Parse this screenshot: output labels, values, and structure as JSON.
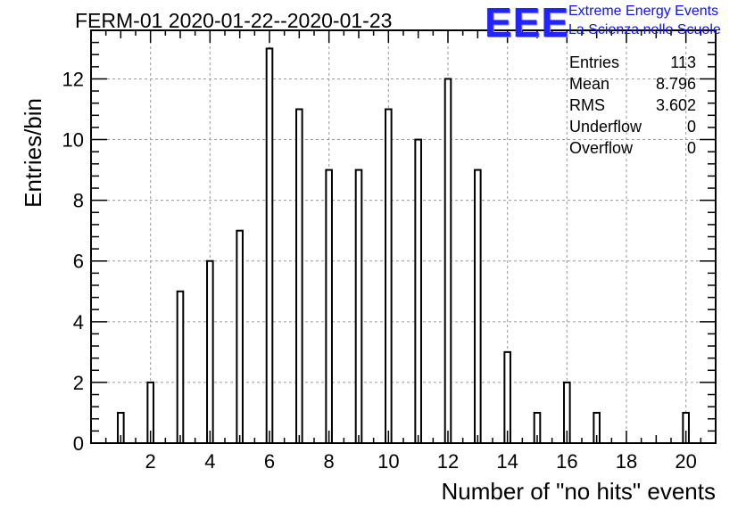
{
  "header": {
    "title": "FERM-01 2020-01-22--2020-01-23",
    "logo_mark": "EEE",
    "logo_line1": "Extreme Energy Events",
    "logo_line2": "La Scienza nelle Scuole"
  },
  "stats": [
    {
      "label": "Entries",
      "value": "113"
    },
    {
      "label": "Mean",
      "value": "8.796"
    },
    {
      "label": "RMS",
      "value": "3.602"
    },
    {
      "label": "Underflow",
      "value": "0"
    },
    {
      "label": "Overflow",
      "value": "0"
    }
  ],
  "chart_data": {
    "type": "bar",
    "title": "FERM-01 2020-01-22--2020-01-23",
    "xlabel": "Number of \"no hits\" events",
    "ylabel": "Entries/bin",
    "xlim": [
      0,
      21
    ],
    "ylim": [
      0,
      13.6
    ],
    "grid": true,
    "x_ticks": [
      2,
      4,
      6,
      8,
      10,
      12,
      14,
      16,
      18,
      20
    ],
    "y_ticks": [
      0,
      2,
      4,
      6,
      8,
      10,
      12
    ],
    "categories": [
      1,
      2,
      3,
      4,
      5,
      6,
      7,
      8,
      9,
      10,
      11,
      12,
      13,
      14,
      15,
      16,
      17,
      18,
      19,
      20
    ],
    "values": [
      1,
      2,
      5,
      6,
      7,
      13,
      11,
      9,
      9,
      11,
      10,
      12,
      9,
      3,
      1,
      2,
      1,
      0,
      0,
      1
    ],
    "bar_color": "#ffffff",
    "edge_color": "#000000"
  }
}
